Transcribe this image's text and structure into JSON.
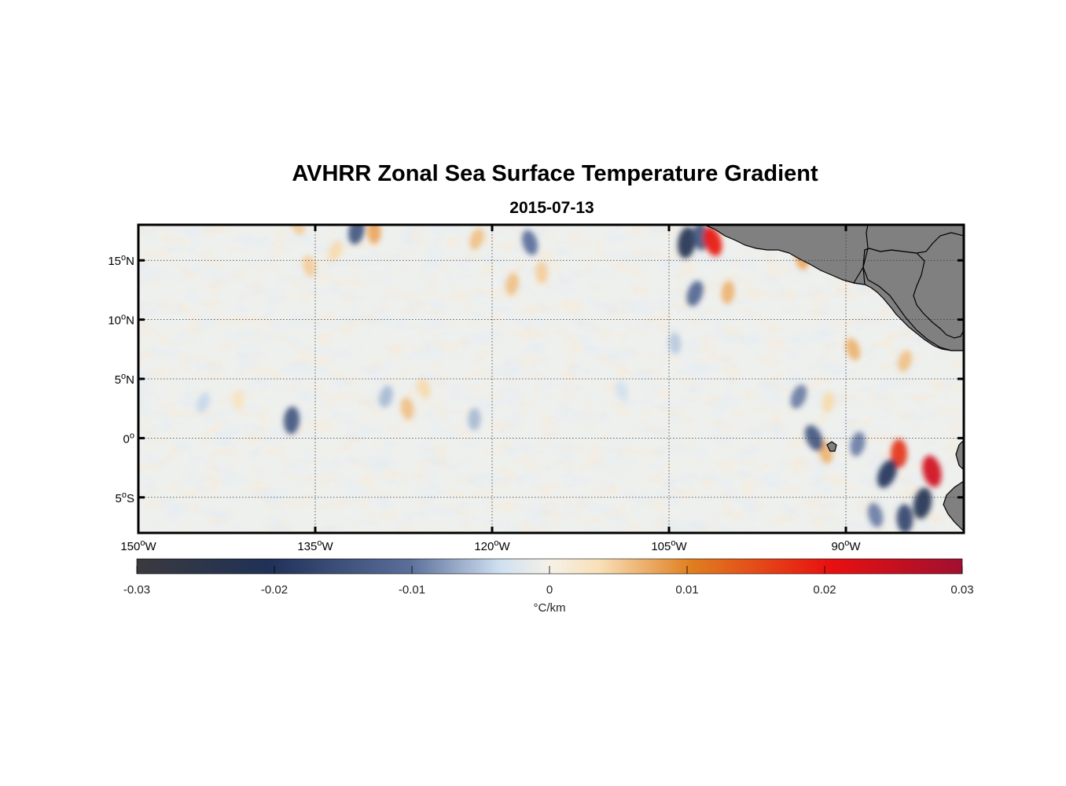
{
  "figure": {
    "title": "AVHRR Zonal Sea Surface Temperature Gradient",
    "subtitle": "2015-07-13"
  },
  "map": {
    "lon_range": [
      -150,
      -80
    ],
    "lat_range": [
      -8,
      18
    ],
    "land_color": "#808080",
    "gridlines": "dotted",
    "lat_ticks": [
      {
        "value": 15,
        "label": "15",
        "suffix": "N"
      },
      {
        "value": 10,
        "label": "10",
        "suffix": "N"
      },
      {
        "value": 5,
        "label": "5",
        "suffix": "N"
      },
      {
        "value": 0,
        "label": "0",
        "suffix": ""
      },
      {
        "value": -5,
        "label": "5",
        "suffix": "S"
      }
    ],
    "lon_ticks": [
      {
        "value": -150,
        "label": "150",
        "suffix": "W"
      },
      {
        "value": -135,
        "label": "135",
        "suffix": "W"
      },
      {
        "value": -120,
        "label": "120",
        "suffix": "W"
      },
      {
        "value": -105,
        "label": "105",
        "suffix": "W"
      },
      {
        "value": -90,
        "label": "90",
        "suffix": "W"
      }
    ]
  },
  "colorbar": {
    "range": [
      -0.03,
      0.03
    ],
    "ticks": [
      {
        "value": -0.03,
        "label": "-0.03"
      },
      {
        "value": -0.02,
        "label": "-0.02"
      },
      {
        "value": -0.01,
        "label": "-0.01"
      },
      {
        "value": 0,
        "label": "0"
      },
      {
        "value": 0.01,
        "label": "0.01"
      },
      {
        "value": 0.02,
        "label": "0.02"
      },
      {
        "value": 0.03,
        "label": "0.03"
      }
    ],
    "units": "°C/km",
    "colors": [
      "#3a3a3e",
      "#1f3157",
      "#5a6e9a",
      "#cfe0f0",
      "#f5f1e8",
      "#f8e0b8",
      "#e08020",
      "#e81010",
      "#a01030"
    ]
  },
  "chart_data": {
    "type": "heatmap",
    "title": "AVHRR Zonal Sea Surface Temperature Gradient",
    "subtitle": "2015-07-13",
    "xlabel": "",
    "ylabel": "",
    "x_range": [
      -150,
      -80
    ],
    "y_range": [
      -8,
      18
    ],
    "colorbar_range": [
      -0.03,
      0.03
    ],
    "colorbar_label": "°C/km",
    "features": [
      {
        "lon": -136.5,
        "lat": 18,
        "value": 0.009
      },
      {
        "lon": -131.5,
        "lat": 17.5,
        "value": -0.018
      },
      {
        "lon": -130.0,
        "lat": 17.4,
        "value": 0.012
      },
      {
        "lon": -135.5,
        "lat": 14.5,
        "value": 0.009
      },
      {
        "lon": -133.3,
        "lat": 15.8,
        "value": 0.008
      },
      {
        "lon": -118.3,
        "lat": 13.0,
        "value": 0.01
      },
      {
        "lon": -115.8,
        "lat": 14.0,
        "value": 0.009
      },
      {
        "lon": -116.8,
        "lat": 16.5,
        "value": -0.015
      },
      {
        "lon": -121.3,
        "lat": 16.8,
        "value": 0.01
      },
      {
        "lon": -103.5,
        "lat": 16.5,
        "value": -0.024
      },
      {
        "lon": -102.3,
        "lat": 17.0,
        "value": -0.018
      },
      {
        "lon": -101.3,
        "lat": 16.6,
        "value": 0.022
      },
      {
        "lon": -102.8,
        "lat": 12.2,
        "value": -0.016
      },
      {
        "lon": -100.0,
        "lat": 12.3,
        "value": 0.011
      },
      {
        "lon": -93.7,
        "lat": 15.2,
        "value": 0.012
      },
      {
        "lon": -89.4,
        "lat": 7.5,
        "value": 0.011
      },
      {
        "lon": -85.0,
        "lat": 6.5,
        "value": 0.01
      },
      {
        "lon": -137.0,
        "lat": 1.5,
        "value": -0.018
      },
      {
        "lon": -127.2,
        "lat": 2.5,
        "value": 0.01
      },
      {
        "lon": -125.8,
        "lat": 4.2,
        "value": 0.008
      },
      {
        "lon": -129.0,
        "lat": 3.5,
        "value": -0.01
      },
      {
        "lon": -121.5,
        "lat": 1.6,
        "value": -0.01
      },
      {
        "lon": -91.7,
        "lat": -1.2,
        "value": 0.011
      },
      {
        "lon": -92.7,
        "lat": 0.0,
        "value": -0.018
      },
      {
        "lon": -89.0,
        "lat": -0.5,
        "value": -0.014
      },
      {
        "lon": -85.5,
        "lat": -1.3,
        "value": 0.02
      },
      {
        "lon": -82.7,
        "lat": -2.8,
        "value": 0.025
      },
      {
        "lon": -86.5,
        "lat": -3.0,
        "value": -0.022
      },
      {
        "lon": -83.5,
        "lat": -5.5,
        "value": -0.024
      },
      {
        "lon": -85.0,
        "lat": -6.8,
        "value": -0.02
      },
      {
        "lon": -87.5,
        "lat": -6.5,
        "value": -0.014
      },
      {
        "lon": -94.0,
        "lat": 3.5,
        "value": -0.014
      },
      {
        "lon": -91.5,
        "lat": 3.0,
        "value": 0.008
      },
      {
        "lon": -104.5,
        "lat": 8.0,
        "value": -0.009
      },
      {
        "lon": -109.0,
        "lat": 4.0,
        "value": -0.007
      },
      {
        "lon": -144.5,
        "lat": 3.0,
        "value": -0.008
      },
      {
        "lon": -141.5,
        "lat": 3.2,
        "value": 0.006
      }
    ]
  }
}
